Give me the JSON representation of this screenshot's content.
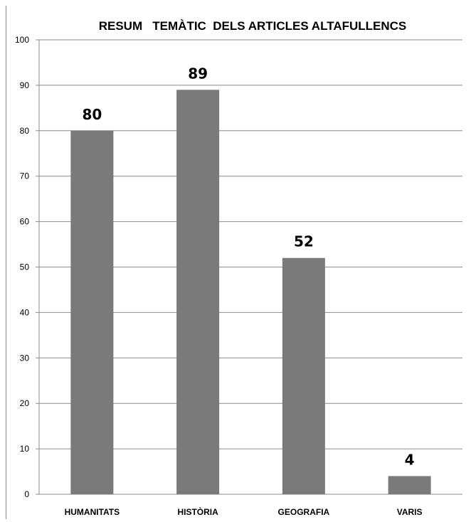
{
  "chart_data": {
    "type": "bar",
    "title": "RESUM   TEMÀTIC  DELS ARTICLES ALTAFULLENCS",
    "categories": [
      "HUMANITATS",
      "HISTÒRIA",
      "GEOGRAFIA",
      "VARIS"
    ],
    "values": [
      80,
      89,
      52,
      4
    ],
    "data_labels": [
      "80",
      "89",
      "52",
      "4"
    ],
    "ylim": [
      0,
      100
    ],
    "yticks": [
      0,
      10,
      20,
      30,
      40,
      50,
      60,
      70,
      80,
      90,
      100
    ],
    "grid": true,
    "legend": "none",
    "bar_color": "#7a7a7a",
    "grid_color": "#8c8c8c"
  }
}
